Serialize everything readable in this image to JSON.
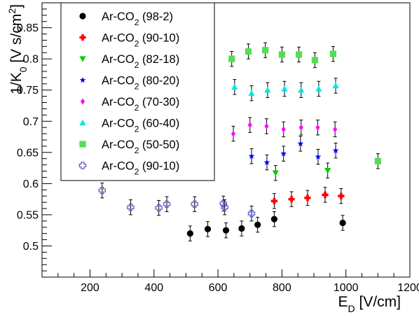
{
  "chart_data": {
    "type": "scatter",
    "title": "",
    "xlabel": "E_D [V/cm]",
    "ylabel": "1/K_0 [V s/cm^2]",
    "xlabel_parts": {
      "base": "E",
      "sub": "D",
      "rest": " [V/cm]"
    },
    "ylabel_parts": {
      "pre": "1/K",
      "sub": "0",
      "mid": " [V s/cm",
      "sup": "2",
      "post": "]"
    },
    "xlim": [
      50,
      1200
    ],
    "ylim": [
      0.45,
      0.89
    ],
    "x_ticks": [
      200,
      400,
      600,
      800,
      1000,
      1200
    ],
    "y_ticks": [
      0.5,
      0.55,
      0.6,
      0.65,
      0.7,
      0.75,
      0.8,
      0.85
    ],
    "x_tick_labels": [
      "200",
      "400",
      "600",
      "800",
      "1000",
      "1200"
    ],
    "y_tick_labels": [
      "0.5",
      "0.55",
      "0.6",
      "0.65",
      "0.7",
      "0.75",
      "0.8",
      "0.85"
    ],
    "grid": false,
    "legend_position": "top-left",
    "series": [
      {
        "name": "Ar-CO2 (98-2)",
        "label_base": "Ar-CO",
        "label_sub": "2",
        "label_rest": " (98-2)",
        "marker": "circle",
        "color": "#000000",
        "points": [
          [
            513,
            0.52
          ],
          [
            568,
            0.527
          ],
          [
            625,
            0.525
          ],
          [
            674,
            0.528
          ],
          [
            724,
            0.534
          ],
          [
            776,
            0.543
          ],
          [
            990,
            0.537
          ]
        ],
        "yerr": 0.012
      },
      {
        "name": "Ar-CO2 (90-10)",
        "label_base": "Ar-CO",
        "label_sub": "2",
        "label_rest": " (90-10)",
        "marker": "plus",
        "color": "#ff0000",
        "points": [
          [
            776,
            0.572
          ],
          [
            830,
            0.575
          ],
          [
            880,
            0.577
          ],
          [
            935,
            0.582
          ],
          [
            985,
            0.58
          ]
        ],
        "yerr": 0.012
      },
      {
        "name": "Ar-CO2 (82-18)",
        "label_base": "Ar-CO",
        "label_sub": "2",
        "label_rest": " (82-18)",
        "marker": "triangle-down",
        "color": "#00cc00",
        "points": [
          [
            780,
            0.617
          ],
          [
            943,
            0.621
          ]
        ],
        "yerr": 0.012
      },
      {
        "name": "Ar-CO2 (80-20)",
        "label_base": "Ar-CO",
        "label_sub": "2",
        "label_rest": " (80-20)",
        "marker": "star",
        "color": "#0000ff",
        "points": [
          [
            705,
            0.644
          ],
          [
            753,
            0.634
          ],
          [
            805,
            0.648
          ],
          [
            858,
            0.664
          ],
          [
            913,
            0.643
          ],
          [
            968,
            0.653
          ]
        ],
        "yerr": 0.012
      },
      {
        "name": "Ar-CO2 (70-30)",
        "label_base": "Ar-CO",
        "label_sub": "2",
        "label_rest": " (70-30)",
        "marker": "diamond",
        "color": "#ff00ff",
        "points": [
          [
            648,
            0.68
          ],
          [
            700,
            0.694
          ],
          [
            752,
            0.692
          ],
          [
            805,
            0.687
          ],
          [
            860,
            0.69
          ],
          [
            912,
            0.69
          ],
          [
            966,
            0.687
          ]
        ],
        "yerr": 0.012
      },
      {
        "name": "Ar-CO2 (60-40)",
        "label_base": "Ar-CO",
        "label_sub": "2",
        "label_rest": " (60-40)",
        "marker": "triangle-up",
        "color": "#00e5e5",
        "points": [
          [
            652,
            0.755
          ],
          [
            705,
            0.745
          ],
          [
            755,
            0.75
          ],
          [
            808,
            0.752
          ],
          [
            860,
            0.75
          ],
          [
            915,
            0.752
          ],
          [
            968,
            0.757
          ]
        ],
        "yerr": 0.012
      },
      {
        "name": "Ar-CO2 (50-50)",
        "label_base": "Ar-CO",
        "label_sub": "2",
        "label_rest": " (50-50)",
        "marker": "square",
        "color": "#55dd55",
        "points": [
          [
            643,
            0.8
          ],
          [
            695,
            0.812
          ],
          [
            748,
            0.814
          ],
          [
            800,
            0.807
          ],
          [
            853,
            0.807
          ],
          [
            903,
            0.798
          ],
          [
            960,
            0.808
          ],
          [
            1100,
            0.636
          ]
        ],
        "yerr": 0.012
      },
      {
        "name": "Ar-CO2 (90-10)",
        "label_base": "Ar-CO",
        "label_sub": "2",
        "label_rest": " (90-10)",
        "marker": "open-cross",
        "color": "#5555cc",
        "points": [
          [
            238,
            0.589
          ],
          [
            327,
            0.562
          ],
          [
            415,
            0.561
          ],
          [
            440,
            0.567
          ],
          [
            527,
            0.567
          ],
          [
            617,
            0.568
          ],
          [
            621,
            0.562
          ],
          [
            705,
            0.552
          ]
        ],
        "yerr": 0.012
      }
    ]
  }
}
